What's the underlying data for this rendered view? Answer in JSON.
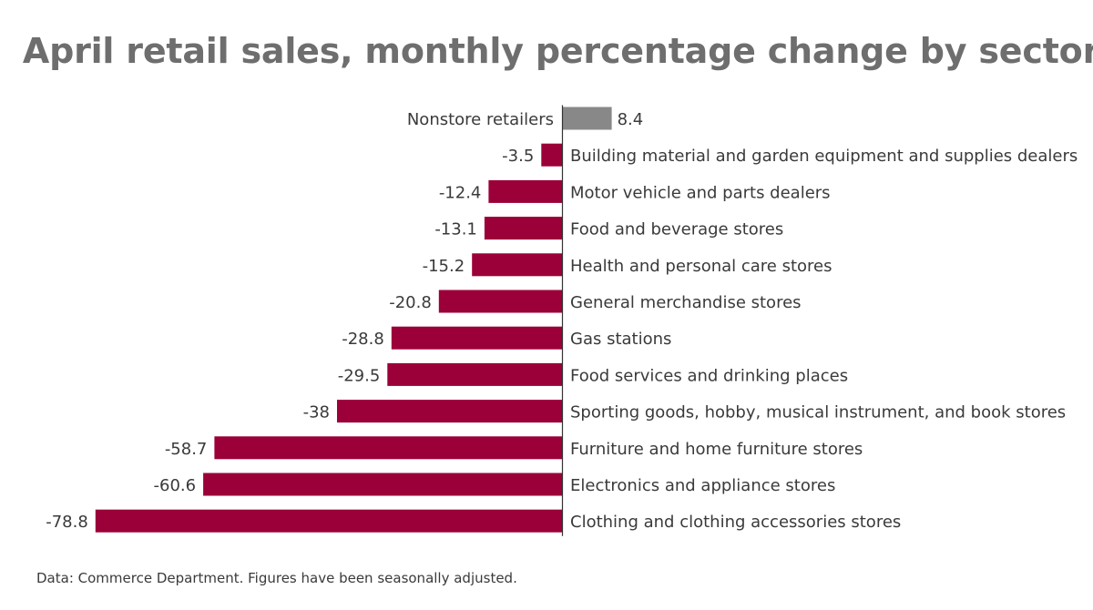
{
  "title": "April retail sales, monthly percentage change by sector",
  "source": "Data: Commerce Department. Figures have been seasonally adjusted.",
  "colors": {
    "positive": "#888888",
    "negative": "#9b0039",
    "axis": "#333333",
    "text": "#3a3a3a",
    "title": "#6e6e6e"
  },
  "chart_data": {
    "type": "bar",
    "orientation": "horizontal",
    "title": "April retail sales, monthly percentage change by sector",
    "xlabel": "",
    "ylabel": "",
    "xlim": [
      -78.8,
      8.4
    ],
    "grid": false,
    "legend": "none",
    "categories": [
      "Nonstore retailers",
      "Building material and garden equipment and supplies dealers",
      "Motor vehicle and parts dealers",
      "Food and beverage stores",
      "Health and personal care stores",
      "General merchandise stores",
      "Gas stations",
      "Food services and drinking places",
      "Sporting goods, hobby, musical instrument, and book stores",
      "Furniture and home furniture stores",
      "Electronics and appliance stores",
      "Clothing and clothing accessories stores"
    ],
    "values": [
      8.4,
      -3.5,
      -12.4,
      -13.1,
      -15.2,
      -20.8,
      -28.8,
      -29.5,
      -38,
      -58.7,
      -60.6,
      -78.8
    ],
    "value_labels": [
      "8.4",
      "-3.5",
      "-12.4",
      "-13.1",
      "-15.2",
      "-20.8",
      "-28.8",
      "-29.5",
      "-38",
      "-58.7",
      "-60.6",
      "-78.8"
    ]
  }
}
